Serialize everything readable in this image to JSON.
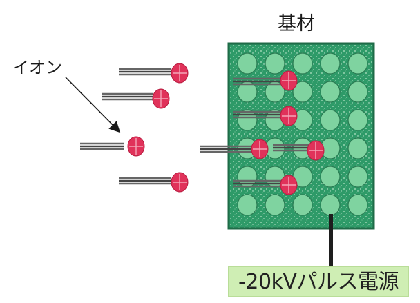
{
  "labels": {
    "substrate": "基材",
    "ion": "イオン",
    "power_supply": "-20kVパルス電源"
  },
  "colors": {
    "substrate_fill": "#2e9a68",
    "substrate_border": "#1f6b47",
    "lattice_atom": "#7fd3a0",
    "ion_fill": "#e0325a",
    "ion_cross": "#f4a6b8",
    "power_supply_fill": "#cfeeb4",
    "wire": "#1e1e1e"
  },
  "diagram": {
    "lattice": {
      "rows": 6,
      "columns": 5
    },
    "incoming_ions": 4,
    "implanted_ions": 5
  }
}
